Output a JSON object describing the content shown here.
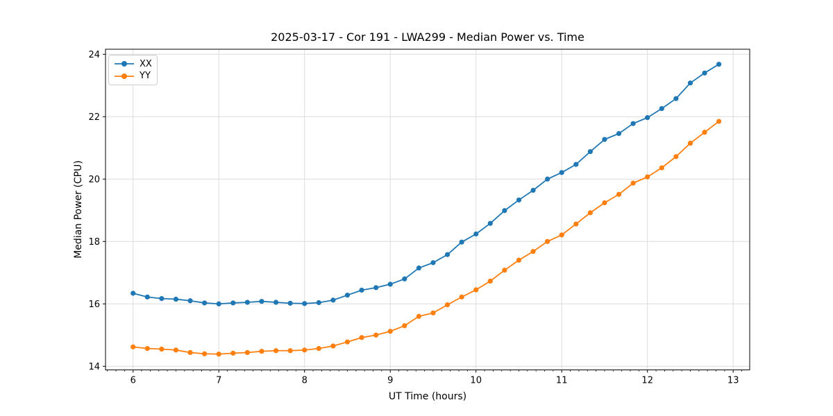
{
  "chart_data": {
    "type": "line",
    "title": "2025-03-17 - Cor 191 - LWA299 - Median Power vs. Time",
    "xlabel": "UT Time (hours)",
    "ylabel": "Median Power (CPU)",
    "xlim": [
      5.6785,
      13.1927
    ],
    "ylim": [
      13.884,
      24.162
    ],
    "xticks": [
      6,
      7,
      8,
      9,
      10,
      11,
      12,
      13
    ],
    "yticks": [
      14,
      16,
      18,
      20,
      22,
      24
    ],
    "x_minor_step": 0.1,
    "grid": true,
    "legend_position": "upper-left",
    "x": [
      6.0,
      6.1667,
      6.3333,
      6.5,
      6.6667,
      6.8333,
      7.0,
      7.1667,
      7.3333,
      7.5,
      7.6667,
      7.8333,
      8.0,
      8.1667,
      8.3333,
      8.5,
      8.6667,
      8.8333,
      9.0,
      9.1667,
      9.3333,
      9.5,
      9.6667,
      9.8333,
      10.0,
      10.1667,
      10.3333,
      10.5,
      10.6667,
      10.8333,
      11.0,
      11.1667,
      11.3333,
      11.5,
      11.6667,
      11.8333,
      12.0,
      12.1667,
      12.3333,
      12.5,
      12.6667,
      12.8333
    ],
    "series": [
      {
        "name": "XX",
        "color": "#1f77b4",
        "values": [
          16.34,
          16.22,
          16.17,
          16.15,
          16.1,
          16.03,
          16.0,
          16.03,
          16.05,
          16.08,
          16.05,
          16.02,
          16.01,
          16.04,
          16.12,
          16.28,
          16.44,
          16.52,
          16.63,
          16.8,
          17.15,
          17.32,
          17.58,
          17.98,
          18.24,
          18.58,
          18.99,
          19.33,
          19.64,
          20.0,
          20.21,
          20.47,
          20.88,
          21.27,
          21.46,
          21.78,
          21.97,
          22.26,
          22.58,
          23.08,
          23.4,
          23.68
        ]
      },
      {
        "name": "YY",
        "color": "#ff7f0e",
        "values": [
          14.62,
          14.57,
          14.55,
          14.52,
          14.44,
          14.4,
          14.39,
          14.42,
          14.44,
          14.48,
          14.5,
          14.5,
          14.52,
          14.57,
          14.65,
          14.78,
          14.92,
          15.0,
          15.12,
          15.3,
          15.6,
          15.71,
          15.97,
          16.22,
          16.45,
          16.73,
          17.08,
          17.4,
          17.68,
          18.0,
          18.21,
          18.56,
          18.92,
          19.24,
          19.51,
          19.87,
          20.07,
          20.36,
          20.72,
          21.15,
          21.5,
          21.85
        ]
      }
    ],
    "style": {
      "grid_color": "#dcdcdc",
      "spine_color": "#000000",
      "tick_color": "#000000",
      "text_color": "#000000",
      "marker_radius": 3.6,
      "line_width": 1.8
    }
  }
}
